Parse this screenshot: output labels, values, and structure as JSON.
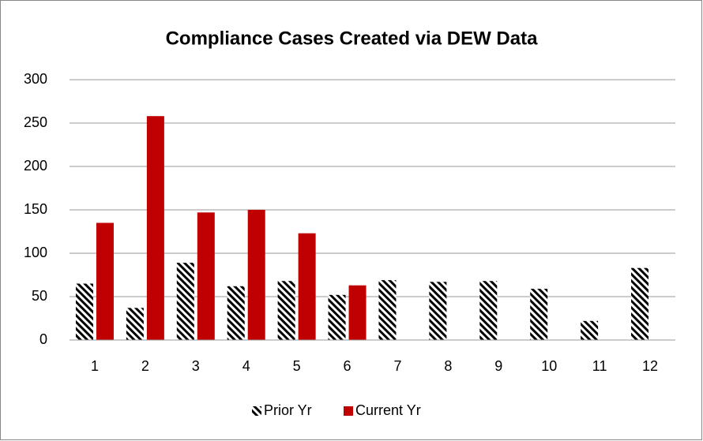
{
  "chart_data": {
    "type": "bar",
    "title": "Compliance Cases Created via DEW Data",
    "categories": [
      "1",
      "2",
      "3",
      "4",
      "5",
      "6",
      "7",
      "8",
      "9",
      "10",
      "11",
      "12"
    ],
    "series": [
      {
        "name": "Prior Yr",
        "color": "#000000",
        "hatch": true,
        "values": [
          65,
          37,
          89,
          62,
          68,
          52,
          69,
          67,
          68,
          59,
          22,
          83
        ]
      },
      {
        "name": "Current Yr",
        "color": "#c00000",
        "hatch": false,
        "values": [
          135,
          258,
          147,
          150,
          123,
          63,
          null,
          null,
          null,
          null,
          null,
          null
        ]
      }
    ],
    "ylim": [
      0,
      300
    ],
    "yticks": [
      0,
      50,
      100,
      150,
      200,
      250,
      300
    ],
    "grid": true,
    "legend": "bottom"
  }
}
